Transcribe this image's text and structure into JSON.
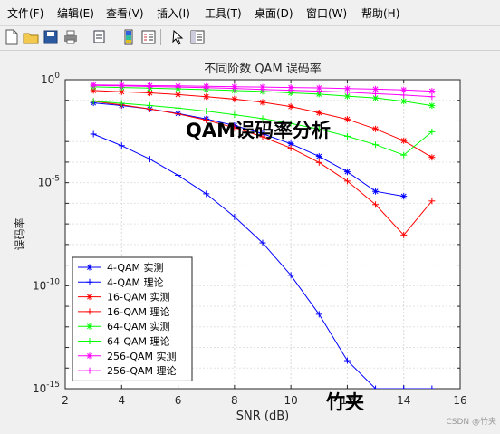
{
  "menu": [
    "文件(F)",
    "编辑(E)",
    "查看(V)",
    "插入(I)",
    "工具(T)",
    "桌面(D)",
    "窗口(W)",
    "帮助(H)"
  ],
  "toolbar": {
    "icons": [
      "new-file-icon",
      "open-folder-icon",
      "save-icon",
      "print-icon",
      "link-icon",
      "insert-colorbar-icon",
      "insert-legend-icon",
      "pointer-icon",
      "property-inspector-icon"
    ]
  },
  "overlay": {
    "title": "QAM误码率分析",
    "author": "竹夹"
  },
  "watermark": "CSDN @竹夹",
  "chart_data": {
    "type": "line",
    "title": "不同阶数 QAM 误码率",
    "xlabel": "SNR (dB)",
    "ylabel": "误码率",
    "xlim": [
      2,
      16
    ],
    "ylim": [
      1e-15,
      1
    ],
    "yscale": "log",
    "xticks": [
      2,
      4,
      6,
      8,
      10,
      12,
      14,
      16
    ],
    "xtick_labels": [
      "2",
      "4",
      "6",
      "8",
      "10",
      "12",
      "14",
      "16"
    ],
    "yticks": [
      1,
      1e-05,
      1e-10,
      1e-15
    ],
    "ytick_labels": [
      {
        "base": "10",
        "exp": "0"
      },
      {
        "base": "10",
        "exp": "-5"
      },
      {
        "base": "10",
        "exp": "-10"
      },
      {
        "base": "10",
        "exp": "-15"
      }
    ],
    "grid": true,
    "legend_position": "lower-left",
    "series": [
      {
        "name": "4-QAM 实测",
        "color": "#0000ff",
        "marker": "star",
        "x": [
          3,
          4,
          5,
          6,
          7,
          8,
          9,
          10,
          11,
          12,
          13,
          14
        ],
        "y": [
          0.075,
          0.056,
          0.038,
          0.023,
          0.0125,
          0.006,
          0.0024,
          0.00078,
          0.00019,
          3.4e-05,
          3.8e-06,
          2.2e-06
        ]
      },
      {
        "name": "4-QAM 理论",
        "color": "#0000ff",
        "marker": "plus",
        "x": [
          3,
          4,
          5,
          6,
          7,
          8,
          9,
          10,
          11,
          12,
          13,
          14,
          15
        ],
        "y": [
          0.0023,
          0.00063,
          0.00014,
          2.3e-05,
          2.9e-06,
          2.2e-07,
          1.2e-08,
          3.2e-10,
          4.1e-12,
          2.3e-14,
          5e-17,
          3e-20,
          1e-15
        ]
      },
      {
        "name": "16-QAM 实测",
        "color": "#ff0000",
        "marker": "star",
        "x": [
          3,
          4,
          5,
          6,
          7,
          8,
          9,
          10,
          11,
          12,
          13,
          14,
          15
        ],
        "y": [
          0.3,
          0.26,
          0.23,
          0.19,
          0.15,
          0.115,
          0.08,
          0.05,
          0.025,
          0.012,
          0.0041,
          0.0011,
          0.00017
        ]
      },
      {
        "name": "16-QAM 理论",
        "color": "#ff0000",
        "marker": "plus",
        "x": [
          3,
          4,
          5,
          6,
          7,
          8,
          9,
          10,
          11,
          12,
          13,
          14,
          15
        ],
        "y": [
          0.089,
          0.06,
          0.038,
          0.022,
          0.011,
          0.0047,
          0.0017,
          0.00048,
          9.6e-05,
          1.2e-05,
          8.7e-07,
          2.9e-08,
          1.3e-06
        ]
      },
      {
        "name": "64-QAM 实测",
        "color": "#00ff00",
        "marker": "star",
        "x": [
          3,
          4,
          5,
          6,
          7,
          8,
          9,
          10,
          11,
          12,
          13,
          14,
          15
        ],
        "y": [
          0.45,
          0.42,
          0.39,
          0.36,
          0.33,
          0.3,
          0.27,
          0.23,
          0.2,
          0.16,
          0.13,
          0.09,
          0.055
        ]
      },
      {
        "name": "64-QAM 理论",
        "color": "#00ff00",
        "marker": "plus",
        "x": [
          3,
          4,
          5,
          6,
          7,
          8,
          9,
          10,
          11,
          12,
          13,
          14,
          15
        ],
        "y": [
          0.09,
          0.072,
          0.056,
          0.042,
          0.03,
          0.02,
          0.013,
          0.0075,
          0.004,
          0.0018,
          0.0007,
          0.00022,
          0.003
        ]
      },
      {
        "name": "256-QAM 实测",
        "color": "#ff00ff",
        "marker": "star",
        "x": [
          3,
          4,
          5,
          6,
          7,
          8,
          9,
          10,
          11,
          12,
          13,
          14,
          15
        ],
        "y": [
          0.56,
          0.54,
          0.52,
          0.5,
          0.48,
          0.46,
          0.44,
          0.42,
          0.4,
          0.37,
          0.35,
          0.32,
          0.28
        ]
      },
      {
        "name": "256-QAM 理论",
        "color": "#ff00ff",
        "marker": "plus",
        "x": [
          3,
          4,
          5,
          6,
          7,
          8,
          9,
          10,
          11,
          12,
          13,
          14,
          15
        ],
        "y": [
          0.53,
          0.5,
          0.47,
          0.44,
          0.41,
          0.38,
          0.34,
          0.31,
          0.28,
          0.25,
          0.21,
          0.18,
          0.15
        ]
      }
    ]
  }
}
